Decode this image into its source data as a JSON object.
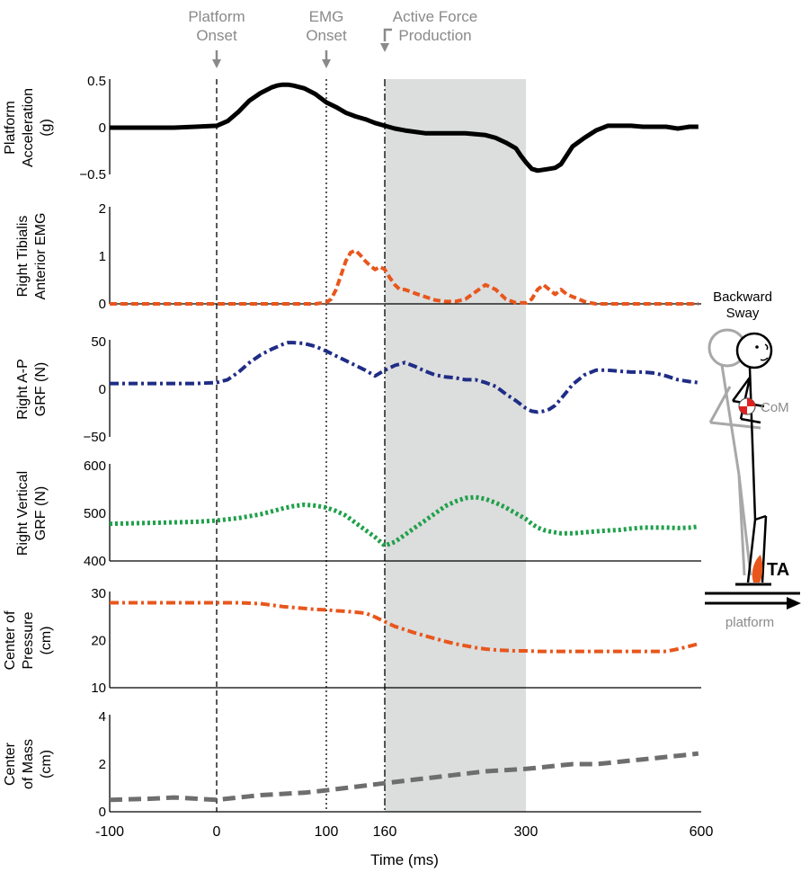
{
  "events": [
    {
      "lines": [
        "Platform",
        "Onset"
      ],
      "x": 0,
      "style": "dashed"
    },
    {
      "lines": [
        "EMG",
        "Onset"
      ],
      "x": 100,
      "style": "dotted"
    },
    {
      "lines": [
        "Active Force",
        "Production"
      ],
      "x": 160,
      "style": "dashdot"
    }
  ],
  "shaded_region": {
    "x_start": 160,
    "x_end": 300,
    "color": "#dcdddd"
  },
  "x_axis": {
    "label": "Time (ms)",
    "ticks": [
      -100,
      0,
      100,
      160,
      300,
      600
    ],
    "range": [
      -100,
      600
    ]
  },
  "figure": {
    "sway_label": [
      "Backward",
      "Sway"
    ],
    "com_label": "CoM",
    "ta_label": "TA",
    "platform_label": "platform",
    "ta_color": "#e8561c",
    "ghost_color": "#a8a8a8"
  },
  "chart_data": [
    {
      "type": "line",
      "ylabel": [
        "Platform",
        "Acceleration",
        "(g)"
      ],
      "ylim": [
        -0.5,
        0.5
      ],
      "yticks": [
        "0.5",
        "0",
        "−0.5"
      ],
      "ytick_values": [
        0.5,
        0,
        -0.5
      ],
      "zero_line": false,
      "series": [
        {
          "color": "#000000",
          "dash": "solid",
          "width": 5,
          "x": [
            -100,
            -80,
            -60,
            -40,
            -20,
            0,
            10,
            20,
            30,
            40,
            50,
            55,
            60,
            65,
            70,
            80,
            90,
            100,
            110,
            120,
            130,
            140,
            150,
            160,
            170,
            180,
            200,
            220,
            240,
            260,
            270,
            280,
            290,
            295,
            300,
            310,
            320,
            330,
            340,
            350,
            360,
            380,
            400,
            420,
            440,
            460,
            480,
            500,
            520,
            540,
            560,
            580,
            595
          ],
          "y": [
            0,
            0,
            0,
            0,
            0.01,
            0.02,
            0.07,
            0.17,
            0.29,
            0.37,
            0.43,
            0.45,
            0.46,
            0.46,
            0.45,
            0.42,
            0.36,
            0.27,
            0.22,
            0.16,
            0.12,
            0.09,
            0.05,
            0.02,
            -0.01,
            -0.03,
            -0.06,
            -0.06,
            -0.06,
            -0.08,
            -0.11,
            -0.16,
            -0.22,
            -0.3,
            -0.37,
            -0.44,
            -0.46,
            -0.45,
            -0.44,
            -0.43,
            -0.39,
            -0.2,
            -0.11,
            -0.03,
            0.02,
            0.02,
            0.02,
            0.01,
            0.01,
            0.01,
            -0.01,
            0.01,
            0.01
          ]
        }
      ]
    },
    {
      "type": "line",
      "ylabel": [
        "Right Tibialis",
        "Anterior EMG"
      ],
      "ylim": [
        0,
        2
      ],
      "yticks": [
        "2",
        "1",
        "0"
      ],
      "ytick_values": [
        2,
        1,
        0
      ],
      "zero_line": true,
      "series": [
        {
          "color": "#e8561c",
          "dash": "8 4",
          "width": 4,
          "x": [
            -100,
            -50,
            0,
            50,
            90,
            100,
            105,
            110,
            115,
            120,
            125,
            130,
            135,
            140,
            145,
            150,
            155,
            160,
            165,
            170,
            175,
            180,
            190,
            200,
            210,
            220,
            230,
            240,
            250,
            260,
            270,
            280,
            290,
            300,
            310,
            320,
            330,
            340,
            350,
            360,
            370,
            380,
            390,
            400,
            410,
            420,
            440,
            460,
            480,
            500,
            550,
            595
          ],
          "y": [
            0,
            0,
            0,
            0,
            0,
            0.03,
            0.1,
            0.3,
            0.6,
            0.9,
            1.08,
            1.12,
            1.02,
            0.9,
            0.8,
            0.72,
            0.78,
            0.72,
            0.55,
            0.4,
            0.3,
            0.3,
            0.22,
            0.15,
            0.08,
            0.05,
            0.05,
            0.1,
            0.25,
            0.4,
            0.3,
            0.1,
            0.02,
            0.02,
            0.1,
            0.3,
            0.4,
            0.3,
            0.2,
            0.3,
            0.2,
            0.15,
            0.1,
            0.05,
            0.02,
            0.0,
            0,
            0,
            0,
            0,
            0,
            0
          ]
        }
      ]
    },
    {
      "type": "line",
      "ylabel": [
        "Right A-P",
        "GRF (N)"
      ],
      "ylim": [
        -50,
        50
      ],
      "yticks": [
        "50",
        "0",
        "−50"
      ],
      "ytick_values": [
        50,
        0,
        -50
      ],
      "zero_line": false,
      "series": [
        {
          "color": "#1f2d86",
          "dash": "10 4 3 4",
          "width": 4,
          "x": [
            -100,
            -60,
            -20,
            0,
            10,
            20,
            30,
            40,
            50,
            60,
            65,
            70,
            80,
            90,
            100,
            110,
            120,
            130,
            140,
            150,
            160,
            170,
            180,
            190,
            200,
            210,
            220,
            230,
            240,
            250,
            260,
            270,
            280,
            290,
            300,
            310,
            320,
            330,
            340,
            350,
            360,
            380,
            400,
            420,
            440,
            460,
            480,
            500,
            520,
            540,
            560,
            580,
            595
          ],
          "y": [
            6,
            6,
            6,
            7,
            10,
            18,
            28,
            36,
            42,
            47,
            49,
            49,
            48,
            45,
            40,
            35,
            30,
            25,
            20,
            14,
            20,
            25,
            28,
            24,
            19,
            15,
            13,
            12,
            10,
            10,
            7,
            3,
            -5,
            -12,
            -20,
            -23,
            -24,
            -23,
            -21,
            -17,
            -10,
            5,
            15,
            20,
            20,
            19,
            18,
            18,
            17,
            14,
            10,
            8,
            7
          ]
        }
      ]
    },
    {
      "type": "line",
      "ylabel": [
        "Right Vertical",
        "GRF (N)"
      ],
      "ylim": [
        400,
        600
      ],
      "yticks": [
        "600",
        "500",
        "400"
      ],
      "ytick_values": [
        600,
        500,
        400
      ],
      "zero_line": true,
      "series": [
        {
          "color": "#1fa04a",
          "dash": "3 3",
          "width": 5,
          "x": [
            -100,
            -60,
            -20,
            0,
            20,
            40,
            50,
            60,
            70,
            80,
            90,
            100,
            110,
            120,
            130,
            140,
            150,
            160,
            170,
            180,
            190,
            200,
            210,
            220,
            230,
            240,
            250,
            260,
            270,
            280,
            290,
            300,
            310,
            320,
            330,
            340,
            360,
            380,
            400,
            420,
            440,
            460,
            480,
            500,
            520,
            540,
            560,
            580,
            595
          ],
          "y": [
            478,
            480,
            482,
            485,
            490,
            498,
            504,
            510,
            515,
            518,
            516,
            512,
            505,
            495,
            480,
            465,
            450,
            432,
            440,
            455,
            470,
            485,
            500,
            515,
            525,
            532,
            534,
            530,
            522,
            512,
            500,
            488,
            478,
            470,
            465,
            462,
            458,
            458,
            460,
            462,
            464,
            465,
            468,
            470,
            470,
            470,
            469,
            470,
            472
          ]
        }
      ]
    },
    {
      "type": "line",
      "ylabel": [
        "Center of",
        "Pressure",
        "(cm)"
      ],
      "ylim": [
        10,
        30
      ],
      "yticks": [
        "30",
        "20",
        "10"
      ],
      "ytick_values": [
        30,
        20,
        10
      ],
      "zero_line": true,
      "series": [
        {
          "color": "#e8561c",
          "dash": "10 4 3 4",
          "width": 4,
          "x": [
            -100,
            -60,
            -20,
            0,
            20,
            40,
            50,
            60,
            70,
            80,
            90,
            100,
            110,
            120,
            130,
            140,
            150,
            160,
            170,
            180,
            190,
            200,
            210,
            220,
            230,
            240,
            250,
            260,
            270,
            280,
            290,
            300,
            320,
            340,
            360,
            380,
            400,
            420,
            440,
            460,
            480,
            500,
            520,
            540,
            560,
            580,
            595
          ],
          "y": [
            28,
            28,
            28,
            28,
            28,
            27.8,
            27.5,
            27.2,
            27,
            26.8,
            26.6,
            26.5,
            26.3,
            26.2,
            26,
            25.8,
            25,
            24,
            23,
            22.3,
            21.6,
            21,
            20.4,
            19.8,
            19.3,
            18.9,
            18.5,
            18.2,
            18,
            17.9,
            17.8,
            17.8,
            17.7,
            17.7,
            17.7,
            17.7,
            17.7,
            17.7,
            17.7,
            17.7,
            17.7,
            17.7,
            17.7,
            17.7,
            18.2,
            18.8,
            19.3
          ]
        }
      ]
    },
    {
      "type": "line",
      "ylabel": [
        "Center",
        "of Mass",
        "(cm)"
      ],
      "ylim": [
        0,
        4
      ],
      "yticks": [
        "4",
        "2",
        "0"
      ],
      "ytick_values": [
        4,
        2,
        0
      ],
      "zero_line": true,
      "series": [
        {
          "color": "#6e6e6e",
          "dash": "14 7",
          "width": 5,
          "x": [
            -100,
            -60,
            -40,
            -20,
            0,
            10,
            20,
            30,
            40,
            60,
            80,
            90,
            100,
            120,
            140,
            160,
            180,
            200,
            220,
            240,
            260,
            280,
            300,
            320,
            340,
            360,
            380,
            400,
            420,
            440,
            460,
            480,
            500,
            520,
            540,
            560,
            580,
            595
          ],
          "y": [
            0.5,
            0.55,
            0.6,
            0.55,
            0.5,
            0.55,
            0.6,
            0.65,
            0.7,
            0.75,
            0.8,
            0.85,
            0.9,
            1.0,
            1.1,
            1.2,
            1.3,
            1.4,
            1.5,
            1.6,
            1.7,
            1.75,
            1.8,
            1.85,
            1.9,
            1.95,
            2.0,
            2.0,
            2.0,
            2.05,
            2.1,
            2.15,
            2.2,
            2.25,
            2.3,
            2.35,
            2.4,
            2.45
          ]
        }
      ]
    }
  ]
}
